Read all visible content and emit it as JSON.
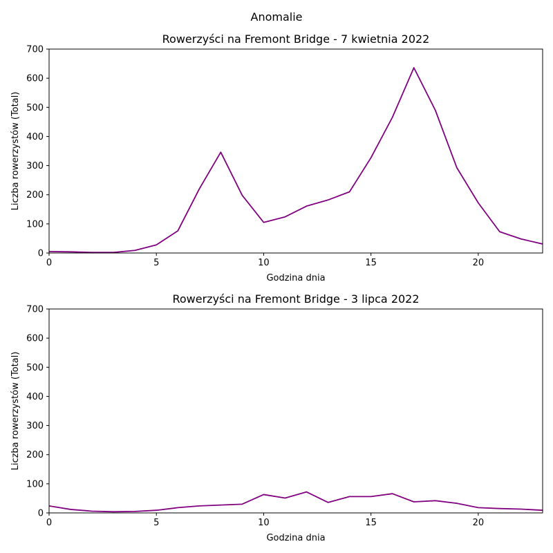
{
  "suptitle": "Anomalie",
  "colors": {
    "line": "#800080",
    "axis": "#000000"
  },
  "chart_data": [
    {
      "type": "line",
      "title": "Rowerzyści na Fremont Bridge - 7 kwietnia 2022",
      "xlabel": "Godzina dnia",
      "ylabel": "Liczba rowerzystów (Total)",
      "xlim": [
        0,
        23
      ],
      "ylim": [
        0,
        700
      ],
      "xticks": [
        0,
        5,
        10,
        15,
        20
      ],
      "yticks": [
        0,
        100,
        200,
        300,
        400,
        500,
        600,
        700
      ],
      "grid": false,
      "x": [
        0,
        1,
        2,
        3,
        4,
        5,
        6,
        7,
        8,
        9,
        10,
        11,
        12,
        13,
        14,
        15,
        16,
        17,
        18,
        19,
        20,
        21,
        22,
        23
      ],
      "values": [
        5,
        4,
        2,
        2,
        9,
        28,
        76,
        220,
        346,
        198,
        105,
        124,
        161,
        182,
        210,
        327,
        466,
        636,
        490,
        293,
        172,
        73,
        48,
        31
      ]
    },
    {
      "type": "line",
      "title": "Rowerzyści na Fremont Bridge - 3 lipca 2022",
      "xlabel": "Godzina dnia",
      "ylabel": "Liczba rowerzystów (Total)",
      "xlim": [
        0,
        23
      ],
      "ylim": [
        0,
        700
      ],
      "xticks": [
        0,
        5,
        10,
        15,
        20
      ],
      "yticks": [
        0,
        100,
        200,
        300,
        400,
        500,
        600,
        700
      ],
      "grid": false,
      "x": [
        0,
        1,
        2,
        3,
        4,
        5,
        6,
        7,
        8,
        9,
        10,
        11,
        12,
        13,
        14,
        15,
        16,
        17,
        18,
        19,
        20,
        21,
        22,
        23
      ],
      "values": [
        24,
        12,
        6,
        4,
        5,
        9,
        18,
        24,
        27,
        30,
        63,
        51,
        72,
        36,
        56,
        56,
        66,
        38,
        42,
        33,
        18,
        15,
        13,
        9
      ]
    }
  ]
}
